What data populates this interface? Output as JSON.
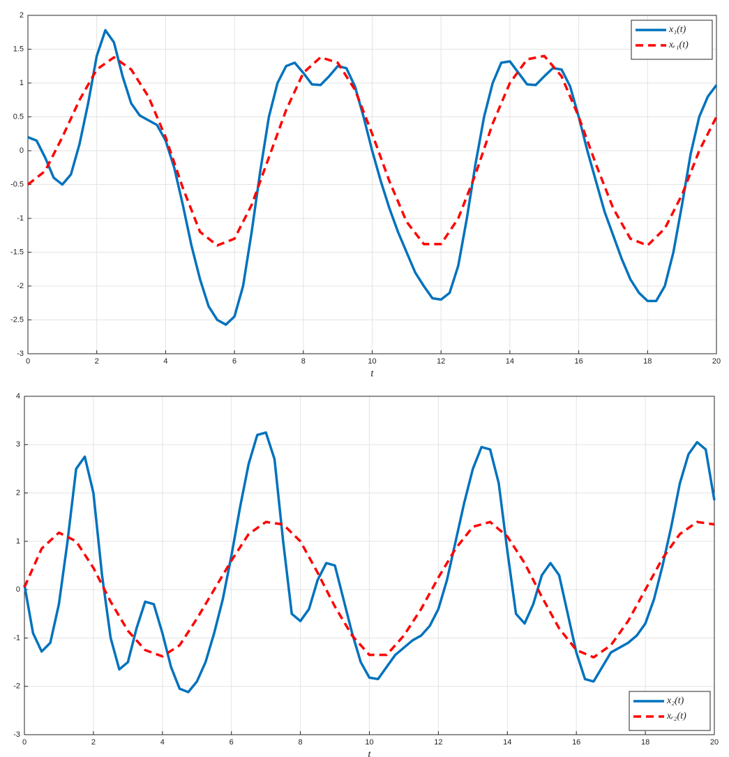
{
  "chart_data": [
    {
      "type": "line",
      "xlabel": "t",
      "xlim": [
        0,
        20
      ],
      "ylim": [
        -3,
        2
      ],
      "xticks": [
        0,
        2,
        4,
        6,
        8,
        10,
        12,
        14,
        16,
        18,
        20
      ],
      "yticks": [
        -3,
        -2.5,
        -2,
        -1.5,
        -1,
        -0.5,
        0,
        0.5,
        1,
        1.5,
        2
      ],
      "grid": true,
      "legend": "upper right",
      "series": [
        {
          "name": "x₁(t)",
          "color": "#0072BD",
          "style": "solid",
          "x": [
            0,
            0.25,
            0.5,
            0.75,
            1,
            1.25,
            1.5,
            1.75,
            2,
            2.25,
            2.5,
            2.75,
            3,
            3.25,
            3.5,
            3.75,
            4,
            4.25,
            4.5,
            4.75,
            5,
            5.25,
            5.5,
            5.75,
            6,
            6.25,
            6.5,
            6.75,
            7,
            7.25,
            7.5,
            7.75,
            8,
            8.25,
            8.5,
            8.75,
            9,
            9.25,
            9.5,
            9.75,
            10,
            10.25,
            10.5,
            10.75,
            11,
            11.25,
            11.5,
            11.75,
            12,
            12.25,
            12.5,
            12.75,
            13,
            13.25,
            13.5,
            13.75,
            14,
            14.25,
            14.5,
            14.75,
            15,
            15.25,
            15.5,
            15.75,
            16,
            16.25,
            16.5,
            16.75,
            17,
            17.25,
            17.5,
            17.75,
            18,
            18.25,
            18.5,
            18.75,
            19,
            19.25,
            19.5,
            19.75,
            20
          ],
          "values": [
            0.2,
            0.15,
            -0.1,
            -0.4,
            -0.5,
            -0.35,
            0.1,
            0.7,
            1.4,
            1.78,
            1.6,
            1.1,
            0.7,
            0.52,
            0.45,
            0.38,
            0.15,
            -0.25,
            -0.8,
            -1.4,
            -1.9,
            -2.3,
            -2.5,
            -2.57,
            -2.45,
            -2.0,
            -1.2,
            -0.3,
            0.5,
            1.0,
            1.25,
            1.3,
            1.15,
            0.98,
            0.97,
            1.1,
            1.25,
            1.22,
            0.95,
            0.5,
            0.0,
            -0.45,
            -0.85,
            -1.2,
            -1.5,
            -1.8,
            -2.0,
            -2.18,
            -2.2,
            -2.1,
            -1.7,
            -1.0,
            -0.2,
            0.5,
            1.0,
            1.3,
            1.32,
            1.15,
            0.98,
            0.97,
            1.1,
            1.22,
            1.2,
            0.95,
            0.5,
            0.0,
            -0.45,
            -0.9,
            -1.25,
            -1.6,
            -1.9,
            -2.1,
            -2.22,
            -2.22,
            -2.0,
            -1.5,
            -0.8,
            -0.05,
            0.5,
            0.8,
            0.97
          ]
        },
        {
          "name": "xᵣ₁(t)",
          "color": "#FF0000",
          "style": "dashed",
          "x": [
            0,
            0.5,
            1,
            1.5,
            2,
            2.5,
            3,
            3.5,
            4,
            4.5,
            5,
            5.5,
            6,
            6.5,
            7,
            7.5,
            8,
            8.5,
            9,
            9.5,
            10,
            10.5,
            11,
            11.5,
            12,
            12.5,
            13,
            13.5,
            14,
            14.5,
            15,
            15.5,
            16,
            16.5,
            17,
            17.5,
            18,
            18.5,
            19,
            19.5,
            20
          ],
          "values": [
            -0.5,
            -0.3,
            0.2,
            0.75,
            1.2,
            1.38,
            1.2,
            0.8,
            0.2,
            -0.55,
            -1.2,
            -1.4,
            -1.3,
            -0.8,
            -0.1,
            0.6,
            1.15,
            1.38,
            1.3,
            0.9,
            0.25,
            -0.45,
            -1.05,
            -1.38,
            -1.38,
            -1.0,
            -0.35,
            0.4,
            1.0,
            1.35,
            1.4,
            1.1,
            0.5,
            -0.2,
            -0.85,
            -1.3,
            -1.4,
            -1.15,
            -0.65,
            0.0,
            0.5
          ]
        }
      ]
    },
    {
      "type": "line",
      "xlabel": "t",
      "xlim": [
        0,
        20
      ],
      "ylim": [
        -3,
        4
      ],
      "xticks": [
        0,
        2,
        4,
        6,
        8,
        10,
        12,
        14,
        16,
        18,
        20
      ],
      "yticks": [
        -3,
        -2,
        -1,
        0,
        1,
        2,
        3,
        4
      ],
      "grid": true,
      "legend": "lower right",
      "series": [
        {
          "name": "x₂(t)",
          "color": "#0072BD",
          "style": "solid",
          "x": [
            0,
            0.25,
            0.5,
            0.75,
            1,
            1.25,
            1.5,
            1.75,
            2,
            2.25,
            2.5,
            2.75,
            3,
            3.25,
            3.5,
            3.75,
            4,
            4.25,
            4.5,
            4.75,
            5,
            5.25,
            5.5,
            5.75,
            6,
            6.25,
            6.5,
            6.75,
            7,
            7.25,
            7.5,
            7.75,
            8,
            8.25,
            8.5,
            8.75,
            9,
            9.25,
            9.5,
            9.75,
            10,
            10.25,
            10.5,
            10.75,
            11,
            11.25,
            11.5,
            11.75,
            12,
            12.25,
            12.5,
            12.75,
            13,
            13.25,
            13.5,
            13.75,
            14,
            14.25,
            14.5,
            14.75,
            15,
            15.25,
            15.5,
            15.75,
            16,
            16.25,
            16.5,
            16.75,
            17,
            17.25,
            17.5,
            17.75,
            18,
            18.25,
            18.5,
            18.75,
            19,
            19.25,
            19.5,
            19.75,
            20
          ],
          "values": [
            0.1,
            -0.9,
            -1.28,
            -1.1,
            -0.3,
            1.0,
            2.5,
            2.75,
            2.0,
            0.3,
            -1.0,
            -1.65,
            -1.5,
            -0.8,
            -0.25,
            -0.3,
            -0.9,
            -1.6,
            -2.05,
            -2.12,
            -1.9,
            -1.5,
            -0.9,
            -0.2,
            0.7,
            1.7,
            2.6,
            3.2,
            3.25,
            2.7,
            1.0,
            -0.5,
            -0.65,
            -0.4,
            0.2,
            0.55,
            0.5,
            -0.2,
            -0.9,
            -1.5,
            -1.82,
            -1.85,
            -1.6,
            -1.35,
            -1.2,
            -1.05,
            -0.95,
            -0.75,
            -0.4,
            0.2,
            1.0,
            1.8,
            2.5,
            2.95,
            2.9,
            2.2,
            0.8,
            -0.5,
            -0.7,
            -0.3,
            0.3,
            0.55,
            0.3,
            -0.5,
            -1.3,
            -1.85,
            -1.9,
            -1.6,
            -1.3,
            -1.2,
            -1.1,
            -0.95,
            -0.7,
            -0.2,
            0.5,
            1.3,
            2.2,
            2.8,
            3.05,
            2.9,
            1.85
          ]
        },
        {
          "name": "xᵣ₂(t)",
          "color": "#FF0000",
          "style": "dashed",
          "x": [
            0,
            0.5,
            1,
            1.5,
            2,
            2.5,
            3,
            3.5,
            4,
            4.5,
            5,
            5.5,
            6,
            6.5,
            7,
            7.5,
            8,
            8.5,
            9,
            9.5,
            10,
            10.5,
            11,
            11.5,
            12,
            12.5,
            13,
            13.5,
            14,
            14.5,
            15,
            15.5,
            16,
            16.5,
            17,
            17.5,
            18,
            18.5,
            19,
            19.5,
            20
          ],
          "values": [
            0.05,
            0.85,
            1.18,
            1.0,
            0.45,
            -0.25,
            -0.85,
            -1.25,
            -1.38,
            -1.15,
            -0.6,
            0.0,
            0.6,
            1.15,
            1.4,
            1.35,
            1.0,
            0.35,
            -0.35,
            -0.95,
            -1.35,
            -1.35,
            -0.95,
            -0.4,
            0.25,
            0.85,
            1.3,
            1.4,
            1.1,
            0.55,
            -0.15,
            -0.8,
            -1.25,
            -1.4,
            -1.15,
            -0.65,
            0.0,
            0.65,
            1.15,
            1.4,
            1.35
          ]
        }
      ]
    }
  ]
}
